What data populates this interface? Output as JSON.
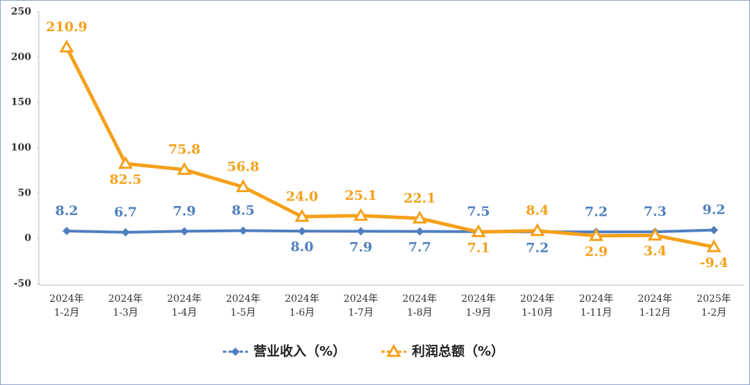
{
  "chart_data": {
    "type": "line",
    "categories": [
      "2024年\n1-2月",
      "2024年\n1-3月",
      "2024年\n1-4月",
      "2024年\n1-5月",
      "2024年\n1-6月",
      "2024年\n1-7月",
      "2024年\n1-8月",
      "2024年\n1-9月",
      "2024年\n1-10月",
      "2024年\n1-11月",
      "2024年\n1-12月",
      "2025年\n1-2月"
    ],
    "series": [
      {
        "name": "营业收入（%）",
        "color": "#4f7fbf",
        "marker": "diamond",
        "values": [
          8.2,
          6.7,
          7.9,
          8.5,
          8.0,
          7.9,
          7.7,
          7.5,
          7.2,
          7.2,
          7.3,
          9.2
        ],
        "value_labels": [
          "8.2",
          "6.7",
          "7.9",
          "8.5",
          "8.0",
          "7.9",
          "7.7",
          "7.5",
          "7.2",
          "7.2",
          "7.3",
          "9.2"
        ]
      },
      {
        "name": "利润总额（%）",
        "color": "#f5a01a",
        "marker": "triangle",
        "values": [
          210.9,
          82.5,
          75.8,
          56.8,
          24.0,
          25.1,
          22.1,
          7.1,
          8.4,
          2.9,
          3.4,
          -9.4
        ],
        "value_labels": [
          "210.9",
          "82.5",
          "75.8",
          "56.8",
          "24.0",
          "25.1",
          "22.1",
          "7.1",
          "8.4",
          "2.9",
          "3.4",
          "-9.4"
        ]
      }
    ],
    "ylim": [
      -50,
      250
    ],
    "yticks": [
      -50,
      0,
      50,
      100,
      150,
      200,
      250
    ],
    "grid": false,
    "legend": "bottom"
  }
}
